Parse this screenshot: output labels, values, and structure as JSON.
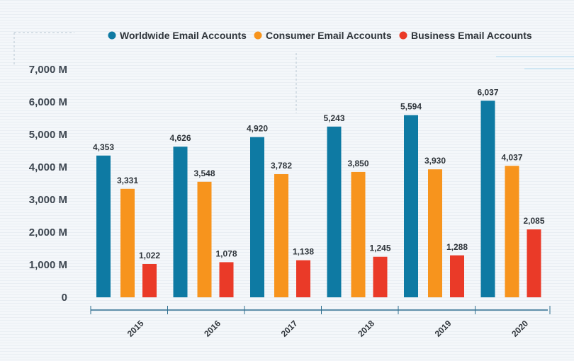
{
  "chart_data": {
    "type": "bar",
    "categories": [
      "2015",
      "2016",
      "2017",
      "2018",
      "2019",
      "2020"
    ],
    "series": [
      {
        "name": "Worldwide Email Accounts",
        "color": "#0e7aa3",
        "values": [
          4353,
          4626,
          4920,
          5243,
          5594,
          6037
        ],
        "labels": [
          "4,353",
          "4,626",
          "4,920",
          "5,243",
          "5,594",
          "6,037"
        ]
      },
      {
        "name": "Consumer Email Accounts",
        "color": "#f7941d",
        "values": [
          3331,
          3548,
          3782,
          3850,
          3930,
          4037
        ],
        "labels": [
          "3,331",
          "3,548",
          "3,782",
          "3,850",
          "3,930",
          "4,037"
        ]
      },
      {
        "name": "Business Email Accounts",
        "color": "#ea3a28",
        "values": [
          1022,
          1078,
          1138,
          1245,
          1288,
          2085
        ],
        "labels": [
          "1,022",
          "1,078",
          "1,138",
          "1,245",
          "1,288",
          "2,085"
        ]
      }
    ],
    "y_ticks": [
      {
        "value": 0,
        "label": "0"
      },
      {
        "value": 1000,
        "label": "1,000 M"
      },
      {
        "value": 2000,
        "label": "2,000 M"
      },
      {
        "value": 3000,
        "label": "3,000 M"
      },
      {
        "value": 4000,
        "label": "4,000 M"
      },
      {
        "value": 5000,
        "label": "5,000 M"
      },
      {
        "value": 6000,
        "label": "6,000 M"
      },
      {
        "value": 7000,
        "label": "7,000 M"
      }
    ],
    "ylim": [
      0,
      7000
    ],
    "legend_position": "top",
    "title": "",
    "xlabel": "",
    "ylabel": ""
  }
}
